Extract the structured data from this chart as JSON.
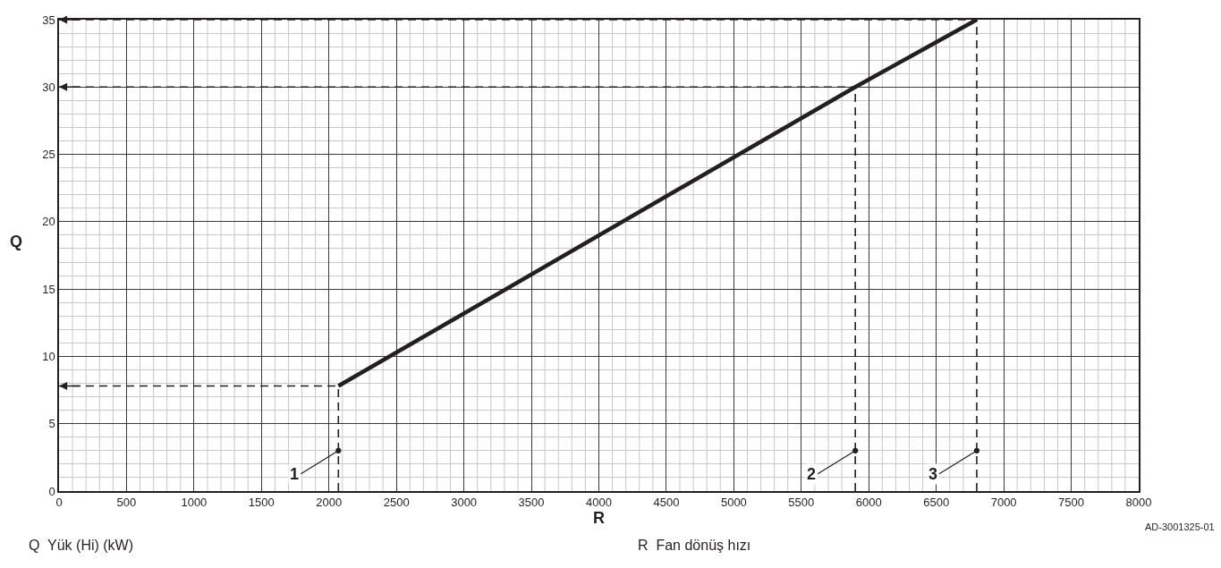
{
  "chart_data": {
    "type": "line",
    "xlabel": "R",
    "ylabel": "Q",
    "series": [
      {
        "color": "#231f20",
        "x": [
          2070,
          5900,
          6800
        ],
        "values": [
          7.8,
          30,
          35
        ]
      }
    ],
    "xlim": [
      0,
      8000
    ],
    "xticks": [
      0,
      500,
      1000,
      1500,
      2000,
      2500,
      3000,
      3500,
      4000,
      4500,
      5000,
      5500,
      6000,
      6500,
      7000,
      7500,
      8000
    ],
    "ylim": [
      0,
      35
    ],
    "yticks": [
      0,
      5,
      10,
      15,
      20,
      25,
      30,
      35
    ],
    "grid": true,
    "marker": "none",
    "line_style": "solid",
    "ref_lines": [
      {
        "axis": "y",
        "value": 7.8,
        "line_style": "dashed"
      },
      {
        "axis": "y",
        "value": 30,
        "line_style": "dashed"
      },
      {
        "axis": "y",
        "value": 35,
        "line_style": "dashed"
      },
      {
        "axis": "x",
        "value": 2070,
        "line_style": "dashed"
      },
      {
        "axis": "x",
        "value": 5900,
        "line_style": "dashed"
      },
      {
        "axis": "x",
        "value": 6800,
        "line_style": "dashed"
      }
    ],
    "annotations": [
      {
        "text": "1",
        "x": 2070,
        "y": 3
      },
      {
        "text": "2",
        "x": 5900,
        "y": 3
      },
      {
        "text": "3",
        "x": 6800,
        "y": 3
      },
      "Q  Yük (Hi) (kW)",
      "R  Fan dönüş hızı",
      "AD-3001325-01"
    ]
  }
}
